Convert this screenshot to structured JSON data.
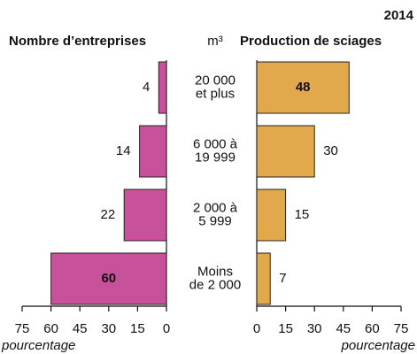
{
  "title": "2014",
  "unit": "m³",
  "categories": [
    [
      "20 000",
      "et plus"
    ],
    [
      "6 000 à",
      "19 999"
    ],
    [
      "2 000 à",
      "5 999"
    ],
    [
      "Moins",
      "de 2 000"
    ]
  ],
  "chart_data": [
    {
      "type": "bar",
      "orientation": "horizontal",
      "direction": "left",
      "title": "Nombre d’entreprises",
      "xlabel": "pourcentage",
      "values": [
        4,
        14,
        22,
        60
      ],
      "color": "#c8519b",
      "xlim": [
        0,
        75
      ],
      "xticks": [
        0,
        15,
        30,
        45,
        60,
        75
      ]
    },
    {
      "type": "bar",
      "orientation": "horizontal",
      "direction": "right",
      "title": "Production de sciages",
      "xlabel": "pourcentage",
      "values": [
        48,
        30,
        15,
        7
      ],
      "color": "#e2a94c",
      "xlim": [
        0,
        75
      ],
      "xticks": [
        0,
        15,
        30,
        45,
        60,
        75
      ]
    }
  ]
}
